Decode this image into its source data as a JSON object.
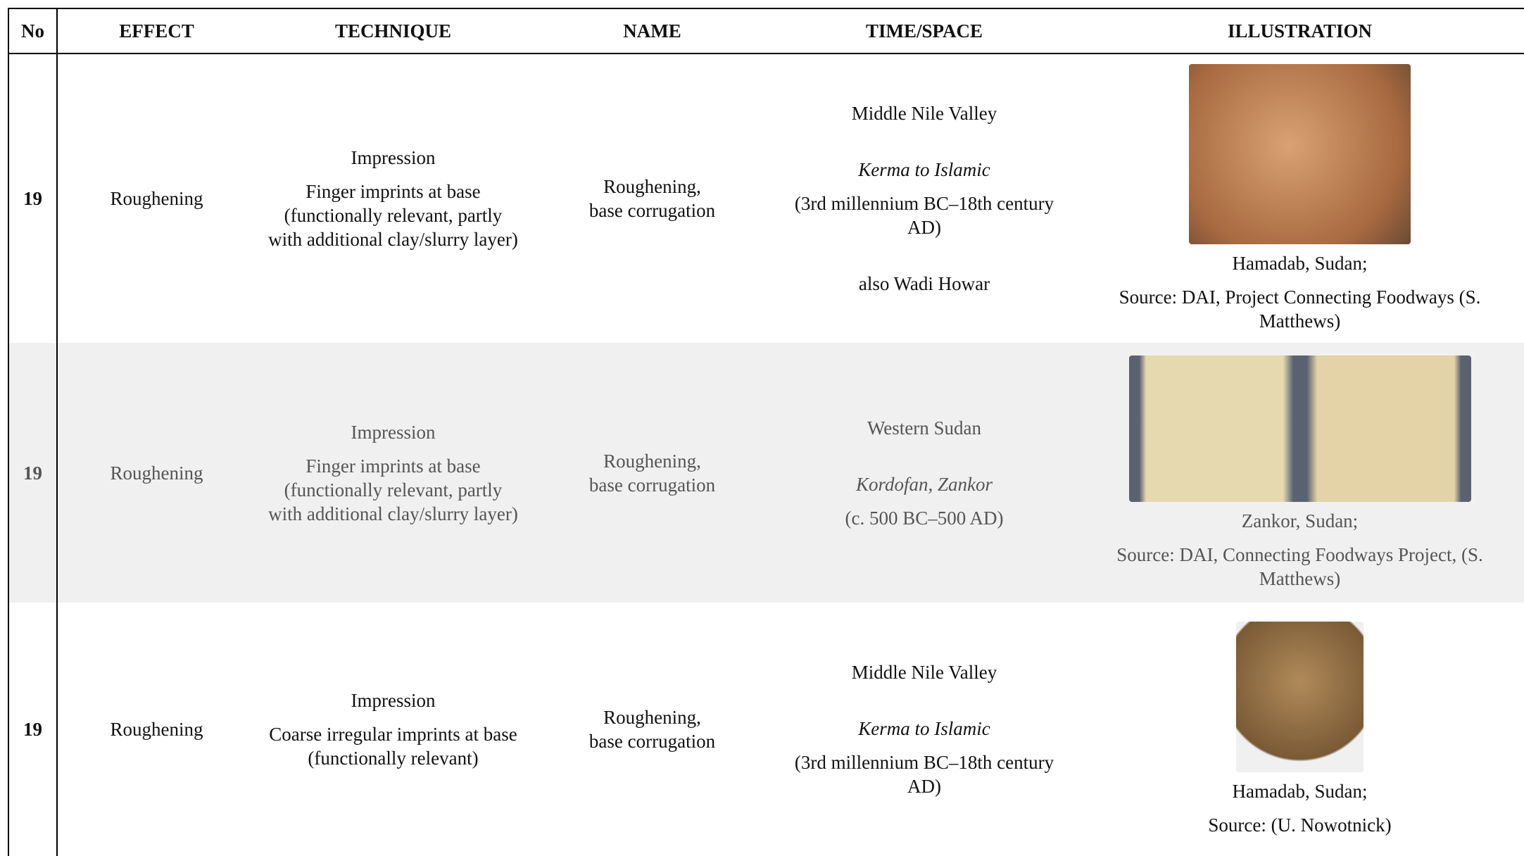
{
  "table": {
    "headers": [
      "No",
      "EFFECT",
      "TECHNIQUE",
      "NAME",
      "TIME/SPACE",
      "ILLUSTRATION"
    ],
    "rows": [
      {
        "no": "19",
        "effect": "Roughening",
        "technique": [
          "Impression",
          "Finger imprints at base (functionally relevant, partly with additional clay/slurry layer)"
        ],
        "name": [
          "Roughening,",
          "base corrugation"
        ],
        "time_space": [
          "Middle Nile Valley",
          "Kerma to Islamic",
          "(3rd millennium BC–18th century AD)",
          "also Wadi Howar"
        ],
        "caption": [
          "Hamadab, Sudan;",
          "Source: DAI, Project Connecting Foodways (S. Matthews)"
        ]
      },
      {
        "no": "19",
        "effect": "Roughening",
        "technique": [
          "Impression",
          "Finger imprints at base (functionally relevant, partly with additional clay/slurry layer)"
        ],
        "name": [
          "Roughening,",
          "base corrugation"
        ],
        "time_space": [
          "Western Sudan",
          "Kordofan, Zankor",
          "(c. 500 BC–500 AD)"
        ],
        "caption": [
          "Zankor, Sudan;",
          "Source: DAI, Connecting Foodways Project, (S. Matthews)"
        ]
      },
      {
        "no": "19",
        "effect": "Roughening",
        "technique": [
          "Impression",
          "Coarse irregular imprints at base (functionally relevant)"
        ],
        "name": [
          "Roughening,",
          "base corrugation"
        ],
        "time_space": [
          "Middle Nile Valley",
          "Kerma to Islamic",
          "(3rd millennium BC–18th century AD)"
        ],
        "caption": [
          "Hamadab, Sudan;",
          "Source: (U. Nowotnick)"
        ]
      }
    ]
  }
}
